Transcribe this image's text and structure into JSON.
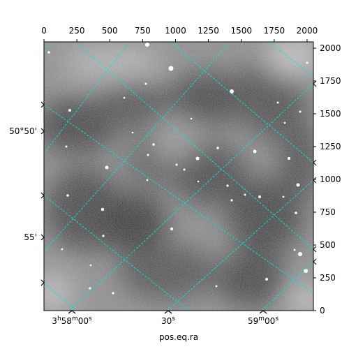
{
  "chart_data": {
    "type": "heatmap",
    "title": "",
    "xlabel": "pos.eq.ra",
    "ylabel": "",
    "pixel_axes": {
      "x_ticks": [
        0,
        250,
        500,
        750,
        1000,
        1250,
        1500,
        1750,
        2000
      ],
      "x_tick_labels": [
        "0",
        "250",
        "500",
        "750",
        "1000",
        "1250",
        "1500",
        "1750",
        "2000"
      ],
      "y_ticks": [
        0,
        250,
        500,
        750,
        1000,
        1250,
        1500,
        1750,
        2000
      ],
      "y_tick_labels": [
        "0",
        "250",
        "500",
        "750",
        "1000",
        "1250",
        "1500",
        "1750",
        "2000"
      ],
      "xlim": [
        0,
        2048
      ],
      "ylim": [
        0,
        2048
      ]
    },
    "world_axes": {
      "ra_ticks": [
        {
          "h": "3",
          "m": "58",
          "s": "00",
          "kind": "full"
        },
        {
          "h": "",
          "m": "",
          "s": "30",
          "kind": "seconds"
        },
        {
          "h": "",
          "m": "59",
          "s": "00",
          "kind": "minutes"
        }
      ],
      "dec_ticks": [
        {
          "text": "50°50'"
        },
        {
          "text": "55'"
        }
      ],
      "grid": true,
      "grid_color": "#00e5e5"
    },
    "colormap": "gray",
    "content": "grayscale sky image with point sources"
  }
}
